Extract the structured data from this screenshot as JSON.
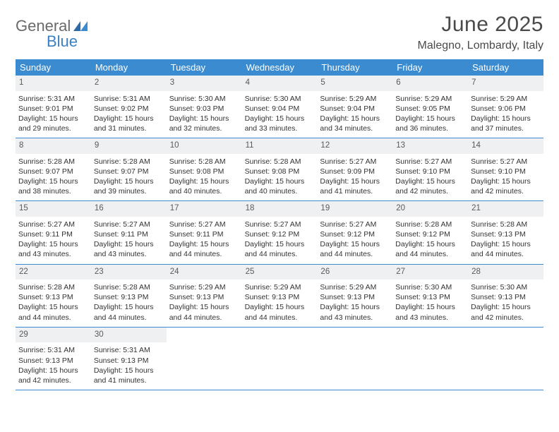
{
  "logo": {
    "word1": "General",
    "word2": "Blue"
  },
  "title": "June 2025",
  "location": "Malegno, Lombardy, Italy",
  "colors": {
    "header_bg": "#3b8bd0",
    "header_text": "#ffffff",
    "daynum_bg": "#eef0f1",
    "divider": "#3b8bd0",
    "logo_gray": "#6a6a6a",
    "logo_blue": "#3b7fc4"
  },
  "day_labels": [
    "Sunday",
    "Monday",
    "Tuesday",
    "Wednesday",
    "Thursday",
    "Friday",
    "Saturday"
  ],
  "weeks": [
    [
      {
        "n": "1",
        "sr": "Sunrise: 5:31 AM",
        "ss": "Sunset: 9:01 PM",
        "dl": "Daylight: 15 hours and 29 minutes."
      },
      {
        "n": "2",
        "sr": "Sunrise: 5:31 AM",
        "ss": "Sunset: 9:02 PM",
        "dl": "Daylight: 15 hours and 31 minutes."
      },
      {
        "n": "3",
        "sr": "Sunrise: 5:30 AM",
        "ss": "Sunset: 9:03 PM",
        "dl": "Daylight: 15 hours and 32 minutes."
      },
      {
        "n": "4",
        "sr": "Sunrise: 5:30 AM",
        "ss": "Sunset: 9:04 PM",
        "dl": "Daylight: 15 hours and 33 minutes."
      },
      {
        "n": "5",
        "sr": "Sunrise: 5:29 AM",
        "ss": "Sunset: 9:04 PM",
        "dl": "Daylight: 15 hours and 34 minutes."
      },
      {
        "n": "6",
        "sr": "Sunrise: 5:29 AM",
        "ss": "Sunset: 9:05 PM",
        "dl": "Daylight: 15 hours and 36 minutes."
      },
      {
        "n": "7",
        "sr": "Sunrise: 5:29 AM",
        "ss": "Sunset: 9:06 PM",
        "dl": "Daylight: 15 hours and 37 minutes."
      }
    ],
    [
      {
        "n": "8",
        "sr": "Sunrise: 5:28 AM",
        "ss": "Sunset: 9:07 PM",
        "dl": "Daylight: 15 hours and 38 minutes."
      },
      {
        "n": "9",
        "sr": "Sunrise: 5:28 AM",
        "ss": "Sunset: 9:07 PM",
        "dl": "Daylight: 15 hours and 39 minutes."
      },
      {
        "n": "10",
        "sr": "Sunrise: 5:28 AM",
        "ss": "Sunset: 9:08 PM",
        "dl": "Daylight: 15 hours and 40 minutes."
      },
      {
        "n": "11",
        "sr": "Sunrise: 5:28 AM",
        "ss": "Sunset: 9:08 PM",
        "dl": "Daylight: 15 hours and 40 minutes."
      },
      {
        "n": "12",
        "sr": "Sunrise: 5:27 AM",
        "ss": "Sunset: 9:09 PM",
        "dl": "Daylight: 15 hours and 41 minutes."
      },
      {
        "n": "13",
        "sr": "Sunrise: 5:27 AM",
        "ss": "Sunset: 9:10 PM",
        "dl": "Daylight: 15 hours and 42 minutes."
      },
      {
        "n": "14",
        "sr": "Sunrise: 5:27 AM",
        "ss": "Sunset: 9:10 PM",
        "dl": "Daylight: 15 hours and 42 minutes."
      }
    ],
    [
      {
        "n": "15",
        "sr": "Sunrise: 5:27 AM",
        "ss": "Sunset: 9:11 PM",
        "dl": "Daylight: 15 hours and 43 minutes."
      },
      {
        "n": "16",
        "sr": "Sunrise: 5:27 AM",
        "ss": "Sunset: 9:11 PM",
        "dl": "Daylight: 15 hours and 43 minutes."
      },
      {
        "n": "17",
        "sr": "Sunrise: 5:27 AM",
        "ss": "Sunset: 9:11 PM",
        "dl": "Daylight: 15 hours and 44 minutes."
      },
      {
        "n": "18",
        "sr": "Sunrise: 5:27 AM",
        "ss": "Sunset: 9:12 PM",
        "dl": "Daylight: 15 hours and 44 minutes."
      },
      {
        "n": "19",
        "sr": "Sunrise: 5:27 AM",
        "ss": "Sunset: 9:12 PM",
        "dl": "Daylight: 15 hours and 44 minutes."
      },
      {
        "n": "20",
        "sr": "Sunrise: 5:28 AM",
        "ss": "Sunset: 9:12 PM",
        "dl": "Daylight: 15 hours and 44 minutes."
      },
      {
        "n": "21",
        "sr": "Sunrise: 5:28 AM",
        "ss": "Sunset: 9:13 PM",
        "dl": "Daylight: 15 hours and 44 minutes."
      }
    ],
    [
      {
        "n": "22",
        "sr": "Sunrise: 5:28 AM",
        "ss": "Sunset: 9:13 PM",
        "dl": "Daylight: 15 hours and 44 minutes."
      },
      {
        "n": "23",
        "sr": "Sunrise: 5:28 AM",
        "ss": "Sunset: 9:13 PM",
        "dl": "Daylight: 15 hours and 44 minutes."
      },
      {
        "n": "24",
        "sr": "Sunrise: 5:29 AM",
        "ss": "Sunset: 9:13 PM",
        "dl": "Daylight: 15 hours and 44 minutes."
      },
      {
        "n": "25",
        "sr": "Sunrise: 5:29 AM",
        "ss": "Sunset: 9:13 PM",
        "dl": "Daylight: 15 hours and 44 minutes."
      },
      {
        "n": "26",
        "sr": "Sunrise: 5:29 AM",
        "ss": "Sunset: 9:13 PM",
        "dl": "Daylight: 15 hours and 43 minutes."
      },
      {
        "n": "27",
        "sr": "Sunrise: 5:30 AM",
        "ss": "Sunset: 9:13 PM",
        "dl": "Daylight: 15 hours and 43 minutes."
      },
      {
        "n": "28",
        "sr": "Sunrise: 5:30 AM",
        "ss": "Sunset: 9:13 PM",
        "dl": "Daylight: 15 hours and 42 minutes."
      }
    ],
    [
      {
        "n": "29",
        "sr": "Sunrise: 5:31 AM",
        "ss": "Sunset: 9:13 PM",
        "dl": "Daylight: 15 hours and 42 minutes."
      },
      {
        "n": "30",
        "sr": "Sunrise: 5:31 AM",
        "ss": "Sunset: 9:13 PM",
        "dl": "Daylight: 15 hours and 41 minutes."
      },
      null,
      null,
      null,
      null,
      null
    ]
  ]
}
